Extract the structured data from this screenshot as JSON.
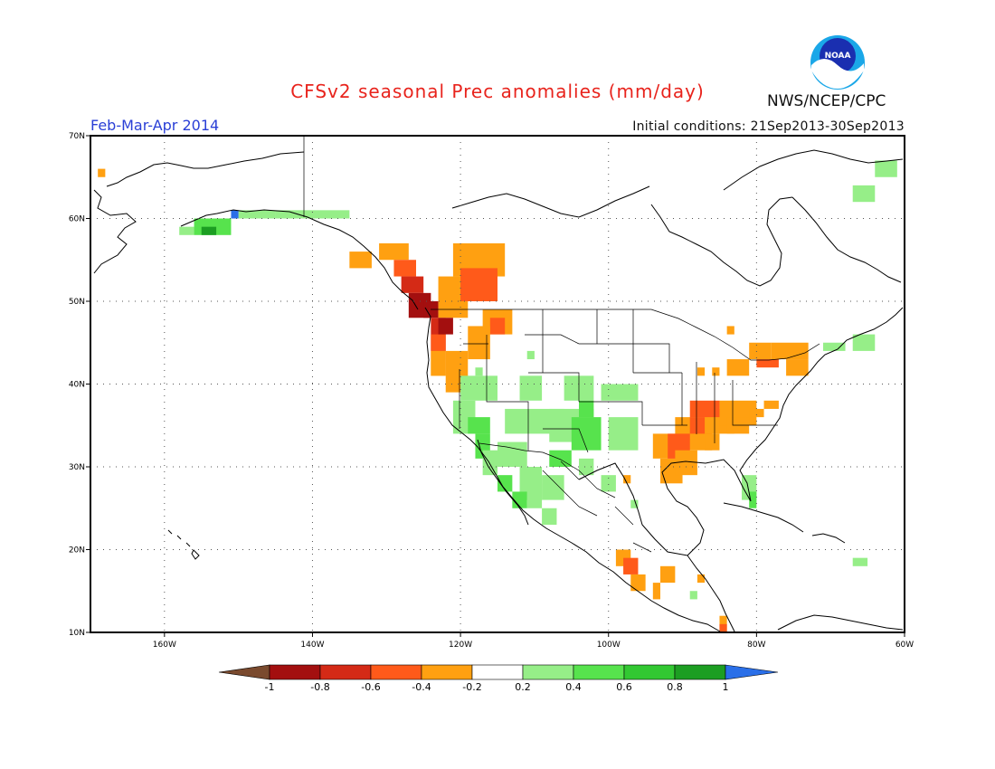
{
  "title": "CFSv2 seasonal Prec anomalies (mm/day)",
  "agency": "NWS/NCEP/CPC",
  "logo_text": "NOAA",
  "period": "Feb-Mar-Apr 2014",
  "initial_conditions": "Initial conditions: 21Sep2013-30Sep2013",
  "colors": {
    "title": "#e8231c",
    "period": "#2a3fd6",
    "agency": "#111111"
  },
  "lat_labels": [
    "70N",
    "60N",
    "50N",
    "40N",
    "30N",
    "20N",
    "10N"
  ],
  "lon_labels": [
    "160W",
    "140W",
    "120W",
    "100W",
    "80W",
    "60W"
  ],
  "map_extent": {
    "lon_min": -170,
    "lon_max": -60,
    "lat_min": 10,
    "lat_max": 70
  },
  "colorbar": {
    "labels": [
      "-1",
      "-0.8",
      "-0.6",
      "-0.4",
      "-0.2",
      "0.2",
      "0.4",
      "0.6",
      "0.8",
      "1"
    ],
    "low_color": "#7a4a2e",
    "high_color": "#2a6fe8",
    "colors": [
      "#a30f0f",
      "#d42a16",
      "#ff5a1a",
      "#ffa011",
      "#ffffff",
      "#96ee88",
      "#57e34d",
      "#32c832",
      "#1c9e22"
    ]
  },
  "anomaly_regions": [
    {
      "lon": -169,
      "lat": 66,
      "w": 1,
      "h": 1,
      "c": "#ffa011"
    },
    {
      "lon": -135,
      "lat": 56,
      "w": 3,
      "h": 2,
      "c": "#ffa011"
    },
    {
      "lon": -131,
      "lat": 57,
      "w": 4,
      "h": 2,
      "c": "#ffa011"
    },
    {
      "lon": -129,
      "lat": 55,
      "w": 3,
      "h": 2,
      "c": "#ff5a1a"
    },
    {
      "lon": -128,
      "lat": 53,
      "w": 3,
      "h": 2,
      "c": "#d42a16"
    },
    {
      "lon": -127,
      "lat": 51,
      "w": 3,
      "h": 3,
      "c": "#a30f0f"
    },
    {
      "lon": -125,
      "lat": 50,
      "w": 2,
      "h": 2,
      "c": "#a30f0f"
    },
    {
      "lon": -124,
      "lat": 48,
      "w": 2,
      "h": 4,
      "c": "#d42a16"
    },
    {
      "lon": -124,
      "lat": 46,
      "w": 2,
      "h": 3,
      "c": "#ff5a1a"
    },
    {
      "lon": -124,
      "lat": 44,
      "w": 2,
      "h": 3,
      "c": "#ffa011"
    },
    {
      "lon": -124,
      "lat": 43,
      "w": 2,
      "h": 2,
      "c": "#ffa011"
    },
    {
      "lon": -123,
      "lat": 53,
      "w": 4,
      "h": 5,
      "c": "#ffa011"
    },
    {
      "lon": -121,
      "lat": 57,
      "w": 7,
      "h": 4,
      "c": "#ffa011"
    },
    {
      "lon": -120,
      "lat": 54,
      "w": 5,
      "h": 4,
      "c": "#ff5a1a"
    },
    {
      "lon": -118,
      "lat": 53,
      "w": 3,
      "h": 3,
      "c": "#ff5a1a"
    },
    {
      "lon": -117,
      "lat": 49,
      "w": 4,
      "h": 3,
      "c": "#ffa011"
    },
    {
      "lon": -116,
      "lat": 48,
      "w": 2,
      "h": 2,
      "c": "#ff5a1a"
    },
    {
      "lon": -122,
      "lat": 44,
      "w": 3,
      "h": 5,
      "c": "#ffa011"
    },
    {
      "lon": -119,
      "lat": 47,
      "w": 3,
      "h": 4,
      "c": "#ffa011"
    },
    {
      "lon": -123,
      "lat": 48,
      "w": 2,
      "h": 2,
      "c": "#a30f0f"
    },
    {
      "lon": -145,
      "lat": 61,
      "w": 10,
      "h": 1,
      "c": "#96ee88"
    },
    {
      "lon": -150,
      "lat": 61,
      "w": 5,
      "h": 1,
      "c": "#96ee88"
    },
    {
      "lon": -156,
      "lat": 60,
      "w": 5,
      "h": 2,
      "c": "#57e34d"
    },
    {
      "lon": -155,
      "lat": 59,
      "w": 2,
      "h": 1,
      "c": "#1c9e22"
    },
    {
      "lon": -151,
      "lat": 61,
      "w": 1,
      "h": 1,
      "c": "#2a6fe8"
    },
    {
      "lon": -158,
      "lat": 59,
      "w": 2,
      "h": 1,
      "c": "#96ee88"
    },
    {
      "lon": -121,
      "lat": 38,
      "w": 3,
      "h": 4,
      "c": "#96ee88"
    },
    {
      "lon": -120,
      "lat": 41,
      "w": 5,
      "h": 3,
      "c": "#96ee88"
    },
    {
      "lon": -119,
      "lat": 36,
      "w": 3,
      "h": 2,
      "c": "#57e34d"
    },
    {
      "lon": -118,
      "lat": 34,
      "w": 2,
      "h": 3,
      "c": "#57e34d"
    },
    {
      "lon": -117,
      "lat": 32,
      "w": 2,
      "h": 3,
      "c": "#96ee88"
    },
    {
      "lon": -115,
      "lat": 33,
      "w": 4,
      "h": 3,
      "c": "#96ee88"
    },
    {
      "lon": -114,
      "lat": 37,
      "w": 8,
      "h": 3,
      "c": "#96ee88"
    },
    {
      "lon": -112,
      "lat": 41,
      "w": 3,
      "h": 3,
      "c": "#96ee88"
    },
    {
      "lon": -108,
      "lat": 37,
      "w": 6,
      "h": 4,
      "c": "#96ee88"
    },
    {
      "lon": -106,
      "lat": 41,
      "w": 4,
      "h": 3,
      "c": "#96ee88"
    },
    {
      "lon": -105,
      "lat": 36,
      "w": 4,
      "h": 4,
      "c": "#57e34d"
    },
    {
      "lon": -104,
      "lat": 38,
      "w": 2,
      "h": 2,
      "c": "#57e34d"
    },
    {
      "lon": -101,
      "lat": 40,
      "w": 5,
      "h": 2,
      "c": "#96ee88"
    },
    {
      "lon": -100,
      "lat": 36,
      "w": 4,
      "h": 4,
      "c": "#96ee88"
    },
    {
      "lon": -112,
      "lat": 30,
      "w": 3,
      "h": 4,
      "c": "#96ee88"
    },
    {
      "lon": -109,
      "lat": 29,
      "w": 3,
      "h": 3,
      "c": "#96ee88"
    },
    {
      "lon": -108,
      "lat": 32,
      "w": 3,
      "h": 2,
      "c": "#57e34d"
    },
    {
      "lon": -115,
      "lat": 29,
      "w": 2,
      "h": 2,
      "c": "#57e34d"
    },
    {
      "lon": -113,
      "lat": 27,
      "w": 2,
      "h": 2,
      "c": "#57e34d"
    },
    {
      "lon": -111,
      "lat": 28,
      "w": 2,
      "h": 3,
      "c": "#96ee88"
    },
    {
      "lon": -109,
      "lat": 25,
      "w": 2,
      "h": 2,
      "c": "#96ee88"
    },
    {
      "lon": -104,
      "lat": 31,
      "w": 2,
      "h": 2,
      "c": "#96ee88"
    },
    {
      "lon": -101,
      "lat": 29,
      "w": 2,
      "h": 2,
      "c": "#96ee88"
    },
    {
      "lon": -97,
      "lat": 26,
      "w": 1,
      "h": 1,
      "c": "#96ee88"
    },
    {
      "lon": -118,
      "lat": 42,
      "w": 1,
      "h": 1,
      "c": "#96ee88"
    },
    {
      "lon": -111,
      "lat": 44,
      "w": 1,
      "h": 1,
      "c": "#96ee88"
    },
    {
      "lon": -94,
      "lat": 34,
      "w": 4,
      "h": 3,
      "c": "#ffa011"
    },
    {
      "lon": -93,
      "lat": 31,
      "w": 3,
      "h": 3,
      "c": "#ffa011"
    },
    {
      "lon": -91,
      "lat": 36,
      "w": 5,
      "h": 4,
      "c": "#ffa011"
    },
    {
      "lon": -92,
      "lat": 34,
      "w": 3,
      "h": 3,
      "c": "#ff5a1a"
    },
    {
      "lon": -89,
      "lat": 36,
      "w": 3,
      "h": 2,
      "c": "#ff5a1a"
    },
    {
      "lon": -87,
      "lat": 37,
      "w": 4,
      "h": 3,
      "c": "#ffa011"
    },
    {
      "lon": -85,
      "lat": 38,
      "w": 5,
      "h": 3,
      "c": "#ffa011"
    },
    {
      "lon": -84,
      "lat": 36,
      "w": 3,
      "h": 2,
      "c": "#ffa011"
    },
    {
      "lon": -89,
      "lat": 38,
      "w": 4,
      "h": 2,
      "c": "#ff5a1a"
    },
    {
      "lon": -91,
      "lat": 32,
      "w": 3,
      "h": 3,
      "c": "#ffa011"
    },
    {
      "lon": -87,
      "lat": 34,
      "w": 2,
      "h": 2,
      "c": "#ffa011"
    },
    {
      "lon": -81,
      "lat": 37,
      "w": 2,
      "h": 1,
      "c": "#ffa011"
    },
    {
      "lon": -98,
      "lat": 29,
      "w": 1,
      "h": 1,
      "c": "#ffa011"
    },
    {
      "lon": -84,
      "lat": 43,
      "w": 3,
      "h": 2,
      "c": "#ffa011"
    },
    {
      "lon": -81,
      "lat": 45,
      "w": 3,
      "h": 2,
      "c": "#ffa011"
    },
    {
      "lon": -78,
      "lat": 45,
      "w": 5,
      "h": 2,
      "c": "#ffa011"
    },
    {
      "lon": -80,
      "lat": 43,
      "w": 3,
      "h": 1,
      "c": "#ff5a1a"
    },
    {
      "lon": -76,
      "lat": 43,
      "w": 3,
      "h": 2,
      "c": "#ffa011"
    },
    {
      "lon": -86,
      "lat": 42,
      "w": 1,
      "h": 1,
      "c": "#ffa011"
    },
    {
      "lon": -88,
      "lat": 42,
      "w": 1,
      "h": 1,
      "c": "#ffa011"
    },
    {
      "lon": -84,
      "lat": 47,
      "w": 1,
      "h": 1,
      "c": "#ffa011"
    },
    {
      "lon": -79,
      "lat": 38,
      "w": 2,
      "h": 1,
      "c": "#ffa011"
    },
    {
      "lon": -82,
      "lat": 29,
      "w": 2,
      "h": 3,
      "c": "#96ee88"
    },
    {
      "lon": -81,
      "lat": 27,
      "w": 1,
      "h": 2,
      "c": "#57e34d"
    },
    {
      "lon": -71,
      "lat": 45,
      "w": 3,
      "h": 1,
      "c": "#96ee88"
    },
    {
      "lon": -67,
      "lat": 46,
      "w": 3,
      "h": 2,
      "c": "#96ee88"
    },
    {
      "lon": -67,
      "lat": 64,
      "w": 3,
      "h": 2,
      "c": "#96ee88"
    },
    {
      "lon": -64,
      "lat": 67,
      "w": 3,
      "h": 2,
      "c": "#96ee88"
    },
    {
      "lon": -67,
      "lat": 19,
      "w": 2,
      "h": 1,
      "c": "#96ee88"
    },
    {
      "lon": -99,
      "lat": 20,
      "w": 2,
      "h": 2,
      "c": "#ffa011"
    },
    {
      "lon": -98,
      "lat": 19,
      "w": 2,
      "h": 2,
      "c": "#ff5a1a"
    },
    {
      "lon": -97,
      "lat": 17,
      "w": 2,
      "h": 2,
      "c": "#ffa011"
    },
    {
      "lon": -93,
      "lat": 18,
      "w": 2,
      "h": 2,
      "c": "#ffa011"
    },
    {
      "lon": -94,
      "lat": 16,
      "w": 1,
      "h": 2,
      "c": "#ffa011"
    },
    {
      "lon": -88,
      "lat": 17,
      "w": 1,
      "h": 1,
      "c": "#ffa011"
    },
    {
      "lon": -85,
      "lat": 12,
      "w": 1,
      "h": 2,
      "c": "#ffa011"
    },
    {
      "lon": -85,
      "lat": 11,
      "w": 1,
      "h": 1,
      "c": "#ff5a1a"
    },
    {
      "lon": -89,
      "lat": 15,
      "w": 1,
      "h": 1,
      "c": "#96ee88"
    }
  ]
}
